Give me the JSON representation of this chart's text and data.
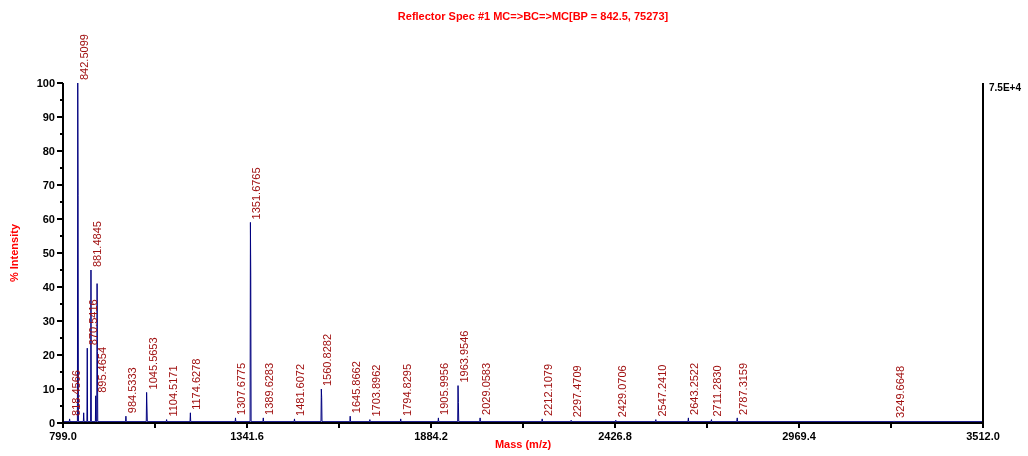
{
  "chart_data": {
    "type": "line",
    "title": "Reflector Spec #1 MC=>BC=>MC[BP = 842.5, 75273]",
    "xlabel": "Mass (m/z)",
    "ylabel": "% Intensity",
    "xlim": [
      799,
      3512
    ],
    "xticks": [
      {
        "value": 799,
        "label": "799.0"
      },
      {
        "value": 1070.3,
        "label": null
      },
      {
        "value": 1341.6,
        "label": "1341.6"
      },
      {
        "value": 1612.9,
        "label": null
      },
      {
        "value": 1884.2,
        "label": "1884.2"
      },
      {
        "value": 2155.5,
        "label": null
      },
      {
        "value": 2426.8,
        "label": "2426.8"
      },
      {
        "value": 2698.1,
        "label": null
      },
      {
        "value": 2969.4,
        "label": "2969.4"
      },
      {
        "value": 3240.7,
        "label": null
      },
      {
        "value": 3512,
        "label": "3512.0"
      }
    ],
    "ylim": [
      0,
      100
    ],
    "yticks": [
      0,
      {
        "value": 5,
        "label": null
      },
      10,
      {
        "value": 15,
        "label": null
      },
      20,
      {
        "value": 25,
        "label": null
      },
      30,
      {
        "value": 35,
        "label": null
      },
      40,
      {
        "value": 45,
        "label": null
      },
      50,
      {
        "value": 55,
        "label": null
      },
      60,
      {
        "value": 65,
        "label": null
      },
      70,
      {
        "value": 75,
        "label": null
      },
      80,
      {
        "value": 85,
        "label": null
      },
      90,
      {
        "value": 95,
        "label": null
      },
      100
    ],
    "series": [
      {
        "color": "#00007f",
        "x": [
          799,
          817.5,
          818.4566,
          819.5,
          841.5,
          842.5099,
          843.51,
          844.5,
          859,
          860,
          861,
          869.5,
          870.5416,
          871.5,
          880.5,
          881.4845,
          882.5,
          894.5,
          895.4654,
          896.5,
          898.5,
          899.5,
          900.5,
          901.5,
          983.5,
          984.5333,
          985.5,
          1044.5,
          1045.5653,
          1046.57,
          1047.6,
          1103.5,
          1104.5171,
          1105.5,
          1173.6,
          1174.6278,
          1175.6,
          1306.7,
          1307.6775,
          1308.7,
          1350.7,
          1351.6765,
          1352.68,
          1353.7,
          1388.6,
          1389.6283,
          1390.6,
          1480.6,
          1481.6072,
          1482.6,
          1559.8,
          1560.8282,
          1561.83,
          1562.8,
          1644.9,
          1645.8662,
          1646.9,
          1702.9,
          1703.8962,
          1704.9,
          1793.8,
          1794.8295,
          1795.8,
          1905,
          1905.9956,
          1907,
          1962.9,
          1963.9546,
          1964.95,
          1966,
          2028,
          2029.0583,
          2030,
          2211,
          2212.1079,
          2213,
          2296.5,
          2297.4709,
          2298.5,
          2428,
          2429.0706,
          2430,
          2546,
          2547.241,
          2548,
          2642,
          2643.2522,
          2644,
          2710,
          2711.283,
          2712,
          2786,
          2787.3159,
          2788,
          3248.7,
          3249.6648,
          3250.7,
          3512
        ],
        "values": [
          0.4,
          0.4,
          1.2,
          0.4,
          0.4,
          100,
          67,
          0.4,
          0.4,
          3,
          0.4,
          0.4,
          22,
          0.4,
          0.4,
          45,
          0.4,
          0.4,
          8,
          0.4,
          0.4,
          41,
          21,
          0.4,
          0.4,
          2,
          0.4,
          0.4,
          9,
          5,
          0.4,
          0.4,
          1,
          0.4,
          0.4,
          3,
          0.4,
          0.4,
          1.5,
          0.4,
          0.4,
          59,
          43.5,
          0.4,
          0.4,
          1.5,
          0.4,
          0.4,
          1.2,
          0.4,
          0.4,
          10,
          7.5,
          0.4,
          0.4,
          2,
          0.4,
          0.4,
          1,
          0.4,
          0.4,
          1.2,
          0.4,
          0.4,
          1.5,
          0.4,
          0.4,
          11,
          6,
          0.4,
          0.4,
          1.5,
          0.4,
          0.4,
          1.2,
          0.4,
          0.4,
          0.8,
          0.4,
          0.4,
          0.8,
          0.4,
          0.4,
          1,
          0.4,
          0.4,
          1.5,
          0.4,
          0.4,
          1,
          0.4,
          0.4,
          1.5,
          0.4,
          0.4,
          0.6,
          0.4,
          0.4
        ]
      }
    ],
    "annotations": [
      "7.5E+4",
      {
        "text": "818.4566",
        "x": 818.4566,
        "y": 1.2
      },
      {
        "text": "842.5099",
        "x": 842.5099,
        "y": 100
      },
      {
        "text": "870.5416",
        "x": 870.5416,
        "y": 22
      },
      {
        "text": "881.4845",
        "x": 881.4845,
        "y": 45
      },
      {
        "text": "895.4654",
        "x": 895.4654,
        "y": 8
      },
      {
        "text": "984.5333",
        "x": 984.5333,
        "y": 2
      },
      {
        "text": "1045.5653",
        "x": 1045.5653,
        "y": 9
      },
      {
        "text": "1104.5171",
        "x": 1104.5171,
        "y": 1
      },
      {
        "text": "1174.6278",
        "x": 1174.6278,
        "y": 3
      },
      {
        "text": "1307.6775",
        "x": 1307.6775,
        "y": 1.5
      },
      {
        "text": "1351.6765",
        "x": 1351.6765,
        "y": 59
      },
      {
        "text": "1389.6283",
        "x": 1389.6283,
        "y": 1.5
      },
      {
        "text": "1481.6072",
        "x": 1481.6072,
        "y": 1.2
      },
      {
        "text": "1560.8282",
        "x": 1560.8282,
        "y": 10
      },
      {
        "text": "1645.8662",
        "x": 1645.8662,
        "y": 2
      },
      {
        "text": "1703.8962",
        "x": 1703.8962,
        "y": 1
      },
      {
        "text": "1794.8295",
        "x": 1794.8295,
        "y": 1.2
      },
      {
        "text": "1905.9956",
        "x": 1905.9956,
        "y": 1.5
      },
      {
        "text": "1963.9546",
        "x": 1963.9546,
        "y": 11
      },
      {
        "text": "2029.0583",
        "x": 2029.0583,
        "y": 1.5
      },
      {
        "text": "2212.1079",
        "x": 2212.1079,
        "y": 1.2
      },
      {
        "text": "2297.4709",
        "x": 2297.4709,
        "y": 0.8
      },
      {
        "text": "2429.0706",
        "x": 2429.0706,
        "y": 0.8
      },
      {
        "text": "2547.2410",
        "x": 2547.241,
        "y": 1
      },
      {
        "text": "2643.2522",
        "x": 2643.2522,
        "y": 1.5
      },
      {
        "text": "2711.2830",
        "x": 2711.283,
        "y": 1
      },
      {
        "text": "2787.3159",
        "x": 2787.3159,
        "y": 1.5
      },
      {
        "text": "3249.6648",
        "x": 3249.6648,
        "y": 0.6
      }
    ]
  }
}
